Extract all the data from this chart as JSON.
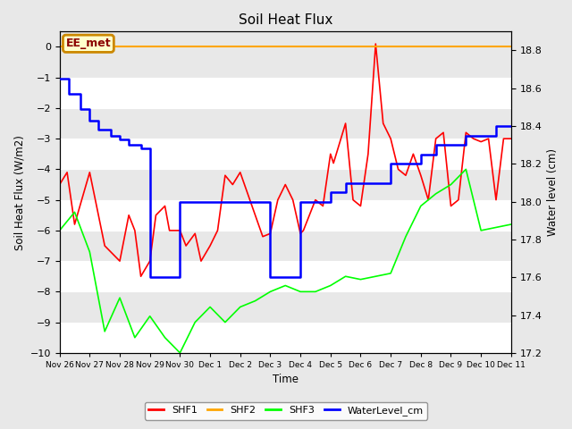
{
  "title": "Soil Heat Flux",
  "ylabel_left": "Soil Heat Flux (W/m2)",
  "ylabel_right": "Water level (cm)",
  "xlabel": "Time",
  "ylim_left": [
    -10.0,
    0.5
  ],
  "ylim_right": [
    17.2,
    18.9
  ],
  "fig_facecolor": "#e8e8e8",
  "plot_facecolor": "#e8e8e8",
  "annotation_label": "EE_met",
  "annotation_color": "#8B0000",
  "annotation_bg": "#ffffcc",
  "annotation_border": "#cc8800",
  "shf2_color": "#FFA500",
  "shf1_color": "red",
  "shf3_color": "lime",
  "wl_color": "blue",
  "x_tick_labels": [
    "Nov 26",
    "Nov 27",
    "Nov 28",
    "Nov 29",
    "Nov 30",
    "Dec 1",
    "Dec 2",
    "Dec 3",
    "Dec 4",
    "Dec 5",
    "Dec 6",
    "Dec 7",
    "Dec 8",
    "Dec 9",
    "Dec 10",
    "Dec 11"
  ],
  "shf1_x": [
    0.0,
    0.25,
    0.5,
    1.0,
    1.5,
    2.0,
    2.3,
    2.5,
    2.7,
    3.0,
    3.2,
    3.5,
    3.65,
    4.0,
    4.2,
    4.5,
    4.7,
    5.0,
    5.25,
    5.5,
    5.75,
    6.0,
    6.25,
    6.5,
    6.75,
    7.0,
    7.25,
    7.5,
    7.75,
    8.0,
    8.1,
    8.5,
    8.75,
    9.0,
    9.1,
    9.5,
    9.75,
    10.0,
    10.25,
    10.5,
    10.75,
    11.0,
    11.25,
    11.5,
    11.75,
    12.0,
    12.25,
    12.5,
    12.75,
    13.0,
    13.25,
    13.5,
    13.75,
    14.0,
    14.25,
    14.5,
    14.75,
    15.0
  ],
  "shf1_y": [
    -4.5,
    -4.1,
    -5.8,
    -4.1,
    -6.5,
    -7.0,
    -5.5,
    -6.0,
    -7.5,
    -7.0,
    -5.5,
    -5.2,
    -6.0,
    -6.0,
    -6.5,
    -6.1,
    -7.0,
    -6.5,
    -6.0,
    -4.2,
    -4.5,
    -4.1,
    -4.8,
    -5.5,
    -6.2,
    -6.1,
    -5.0,
    -4.5,
    -5.0,
    -6.1,
    -6.0,
    -5.0,
    -5.2,
    -3.5,
    -3.8,
    -2.5,
    -5.0,
    -5.2,
    -3.5,
    0.1,
    -2.5,
    -3.0,
    -4.0,
    -4.2,
    -3.5,
    -4.2,
    -5.0,
    -3.0,
    -2.8,
    -5.2,
    -5.0,
    -2.8,
    -3.0,
    -3.1,
    -3.0,
    -5.0,
    -3.0,
    -3.0
  ],
  "shf3_x": [
    0.0,
    0.5,
    1.0,
    1.5,
    2.0,
    2.5,
    3.0,
    3.5,
    4.0,
    4.5,
    5.0,
    5.5,
    6.0,
    6.5,
    7.0,
    7.5,
    8.0,
    8.5,
    9.0,
    9.5,
    10.0,
    10.5,
    11.0,
    11.5,
    12.0,
    12.5,
    13.0,
    13.5,
    14.0,
    14.5,
    15.0
  ],
  "shf3_y": [
    -6.0,
    -5.4,
    -6.7,
    -9.3,
    -8.2,
    -9.5,
    -8.8,
    -9.5,
    -10.0,
    -9.0,
    -8.5,
    -9.0,
    -8.5,
    -8.3,
    -8.0,
    -7.8,
    -8.0,
    -8.0,
    -7.8,
    -7.5,
    -7.6,
    -7.5,
    -7.4,
    -6.2,
    -5.2,
    -4.8,
    -4.5,
    -4.0,
    -6.0,
    -5.9,
    -5.8
  ],
  "wl_x": [
    0.0,
    0.3,
    0.7,
    1.0,
    1.3,
    1.7,
    2.0,
    2.3,
    2.7,
    3.0,
    3.0,
    3.5,
    4.0,
    4.0,
    4.5,
    5.0,
    5.5,
    6.0,
    6.5,
    7.0,
    7.0,
    7.5,
    8.0,
    8.0,
    8.5,
    9.0,
    9.5,
    10.0,
    10.5,
    11.0,
    11.5,
    12.0,
    12.5,
    13.0,
    13.5,
    14.0,
    14.5,
    15.0
  ],
  "wl_y": [
    18.65,
    18.57,
    18.49,
    18.43,
    18.38,
    18.35,
    18.33,
    18.3,
    18.28,
    18.28,
    17.6,
    17.6,
    17.6,
    18.0,
    18.0,
    18.0,
    18.0,
    18.0,
    18.0,
    18.0,
    17.6,
    17.6,
    17.6,
    18.0,
    18.0,
    18.05,
    18.1,
    18.1,
    18.1,
    18.2,
    18.2,
    18.25,
    18.3,
    18.3,
    18.35,
    18.35,
    18.4,
    18.4
  ],
  "figsize": [
    6.4,
    4.8
  ],
  "dpi": 100
}
